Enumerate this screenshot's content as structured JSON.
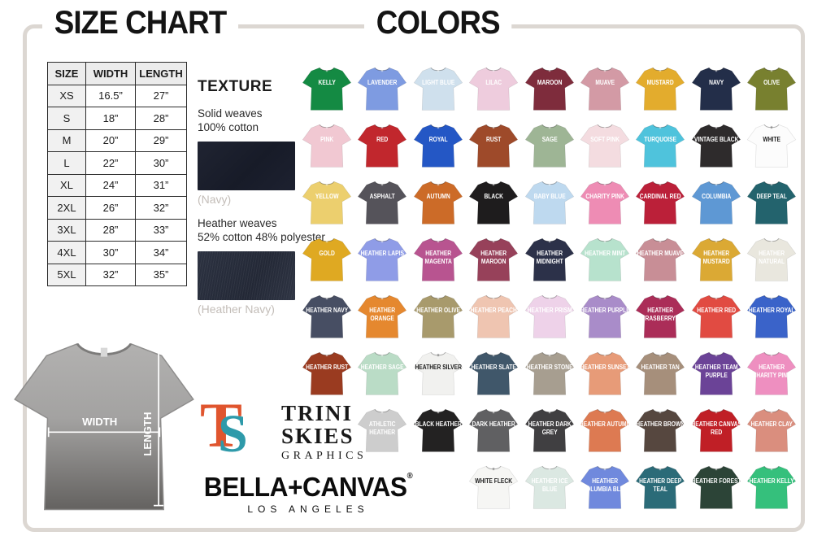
{
  "titles": {
    "size_chart": "SIZE CHART",
    "colors": "COLORS"
  },
  "size_chart": {
    "headers": [
      "SIZE",
      "WIDTH",
      "LENGTH"
    ],
    "rows": [
      [
        "XS",
        "16.5”",
        "27”"
      ],
      [
        "S",
        "18”",
        "28”"
      ],
      [
        "M",
        "20”",
        "29”"
      ],
      [
        "L",
        "22”",
        "30”"
      ],
      [
        "XL",
        "24”",
        "31”"
      ],
      [
        "2XL",
        "26”",
        "32”"
      ],
      [
        "3XL",
        "28”",
        "33”"
      ],
      [
        "4XL",
        "30”",
        "34”"
      ],
      [
        "5XL",
        "32”",
        "35”"
      ]
    ]
  },
  "texture": {
    "heading": "TEXTURE",
    "solid_line1": "Solid weaves",
    "solid_line2": "100% cotton",
    "solid_caption": "(Navy)",
    "heather_line1": "Heather weaves",
    "heather_line2": "52% cotton 48% polyester",
    "heather_caption": "(Heather Navy)"
  },
  "tee_diagram": {
    "width_label": "WIDTH",
    "length_label": "LENGTH"
  },
  "brand": {
    "ts_t": "T",
    "ts_s": "S",
    "name_line1": "TRINI",
    "name_line2": "SKIES",
    "name_line3": "GRAPHICS",
    "bella": "BELLA+CANVAS",
    "reg": "®",
    "city": "LOS ANGELES",
    "logo_orange": "#e0552e",
    "logo_teal": "#2e9aaa"
  },
  "colors": {
    "rows": [
      [
        {
          "label": "KELLY",
          "hex": "#148a43"
        },
        {
          "label": "LAVENDER",
          "hex": "#7e9be1"
        },
        {
          "label": "LIGHT BLUE",
          "hex": "#cfe0ed"
        },
        {
          "label": "LILAC",
          "hex": "#eeccdd"
        },
        {
          "label": "MAROON",
          "hex": "#7e2c3c"
        },
        {
          "label": "MUAVE",
          "hex": "#d39aa5"
        },
        {
          "label": "MUSTARD",
          "hex": "#e3ac2d"
        },
        {
          "label": "NAVY",
          "hex": "#232e49"
        },
        {
          "label": "OLIVE",
          "hex": "#78802f"
        }
      ],
      [
        {
          "label": "PINK",
          "hex": "#f1c8d2"
        },
        {
          "label": "RED",
          "hex": "#c1272d"
        },
        {
          "label": "ROYAL",
          "hex": "#2457c5"
        },
        {
          "label": "RUST",
          "hex": "#9e4a2a"
        },
        {
          "label": "SAGE",
          "hex": "#9eb595"
        },
        {
          "label": "SOFT PINK",
          "hex": "#f4dce0"
        },
        {
          "label": "TURQUOISE",
          "hex": "#4fc3dc"
        },
        {
          "label": "VINTAGE BLACK",
          "hex": "#2e2b2c"
        },
        {
          "label": "WHITE",
          "hex": "#fcfcfc",
          "dark_text": true
        }
      ],
      [
        {
          "label": "YELLOW",
          "hex": "#eccf6e"
        },
        {
          "label": "ASPHALT",
          "hex": "#55535a"
        },
        {
          "label": "AUTUMN",
          "hex": "#cc6b28"
        },
        {
          "label": "BLACK",
          "hex": "#1e1c1d"
        },
        {
          "label": "BABY BLUE",
          "hex": "#bed9ef"
        },
        {
          "label": "CHARITY PINK",
          "hex": "#ee8cb4"
        },
        {
          "label": "CARDINAL RED",
          "hex": "#bb2039"
        },
        {
          "label": "COLUMBIA",
          "hex": "#5e98d4"
        },
        {
          "label": "DEEP TEAL",
          "hex": "#23636d"
        }
      ],
      [
        {
          "label": "GOLD",
          "hex": "#dfa922"
        },
        {
          "label": "HEATHER LAPIS",
          "hex": "#8f9ce7"
        },
        {
          "label": "HEATHER MAGENTA",
          "hex": "#b85490"
        },
        {
          "label": "HEATHER MAROON",
          "hex": "#97415a"
        },
        {
          "label": "HEATHER MIDNIGHT",
          "hex": "#2c3149"
        },
        {
          "label": "HEATHER MINT",
          "hex": "#b7e2cd"
        },
        {
          "label": "HEATHER MUAVE",
          "hex": "#c88e96"
        },
        {
          "label": "HEATHER MUSTARD",
          "hex": "#dba934"
        },
        {
          "label": "HEATHER NATURAL",
          "hex": "#e9e7de"
        }
      ],
      [
        {
          "label": "HEATHER NAVY",
          "hex": "#474e63"
        },
        {
          "label": "HEATHER ORANGE",
          "hex": "#e5882f"
        },
        {
          "label": "HEATHER OLIVE",
          "hex": "#a89a6c"
        },
        {
          "label": "HEATHER PEACH",
          "hex": "#efc5b1"
        },
        {
          "label": "HEATHER PRISM",
          "hex": "#eed2e9"
        },
        {
          "label": "HEATHER PURPLE",
          "hex": "#a98cc9"
        },
        {
          "label": "HEATHER RASBERRY",
          "hex": "#ab2d58"
        },
        {
          "label": "HEATHER RED",
          "hex": "#e14b42"
        },
        {
          "label": "HEATHER ROYAL",
          "hex": "#3a63c9"
        }
      ],
      [
        {
          "label": "HEATHER RUST",
          "hex": "#9a3b20"
        },
        {
          "label": "HEATHER SAGE",
          "hex": "#badcc6"
        },
        {
          "label": "HEATHER SILVER",
          "hex": "#f1f1ef",
          "dark_text": true
        },
        {
          "label": "HEATHER SLATE",
          "hex": "#40576a"
        },
        {
          "label": "HEATHER STONE",
          "hex": "#a79e90"
        },
        {
          "label": "HEATHER SUNSET",
          "hex": "#e79b78"
        },
        {
          "label": "HEATHER TAN",
          "hex": "#a68f7b"
        },
        {
          "label": "HEATHER TEAM PURPLE",
          "hex": "#6b4397"
        },
        {
          "label": "HEATHER CHARITY PINK",
          "hex": "#ee8fc0"
        }
      ],
      [
        {
          "label": "ATHLETIC HEATHER",
          "hex": "#cdcdcd"
        },
        {
          "label": "BLACK HEATHER",
          "hex": "#232222"
        },
        {
          "label": "DARK HEATHER",
          "hex": "#606062"
        },
        {
          "label": "HEATHER DARK GREY",
          "hex": "#403f41"
        },
        {
          "label": "HEATHER AUTUMN",
          "hex": "#dd7a52"
        },
        {
          "label": "HEATHER BROWN",
          "hex": "#56473f"
        },
        {
          "label": "HEATHER CANVAS RED",
          "hex": "#c01f26"
        },
        {
          "label": "HEATHER CLAY",
          "hex": "#da8e7e"
        }
      ],
      [
        {
          "label": "WHITE FLECK",
          "hex": "#f6f6f4",
          "dark_text": true
        },
        {
          "label": "HEATHER ICE BLUE",
          "hex": "#dbe8e2"
        },
        {
          "label": "HEATHER COLUMBIA BLUE",
          "hex": "#7089dd"
        },
        {
          "label": "HEATHER DEEP TEAL",
          "hex": "#2b6b78"
        },
        {
          "label": "HEATHER FOREST",
          "hex": "#2c4437"
        },
        {
          "label": "HEATHER KELLY",
          "hex": "#35c07c"
        }
      ]
    ]
  }
}
